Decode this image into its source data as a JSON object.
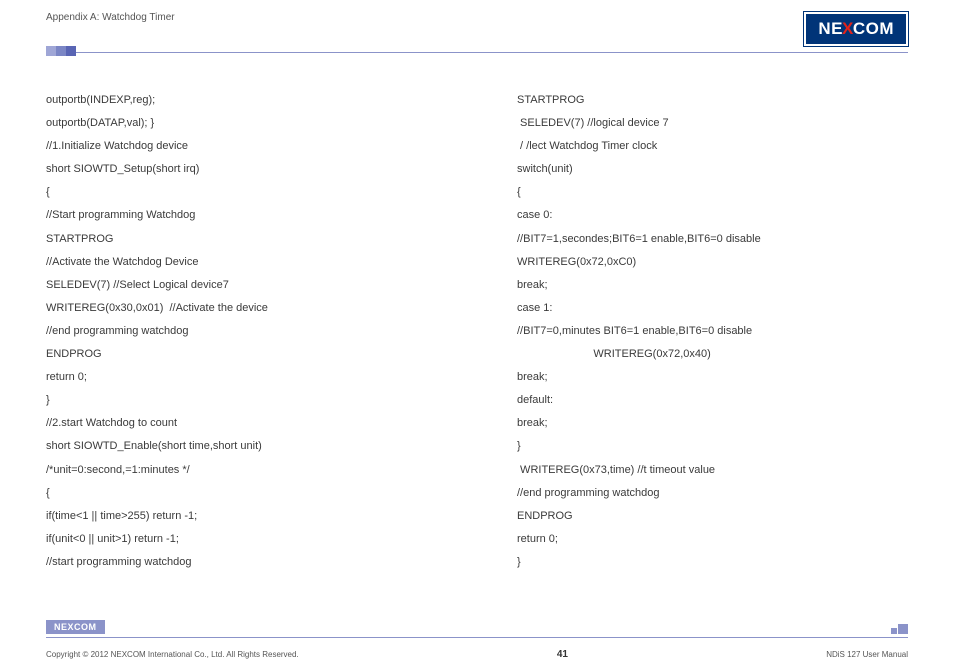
{
  "header": {
    "appendix": "Appendix A: Watchdog Timer",
    "logo_text_left": "NE",
    "logo_text_x": "X",
    "logo_text_right": "COM"
  },
  "colors": {
    "brand_blue": "#003478",
    "brand_red": "#e2231a",
    "rule_purple": "#8b93c9",
    "sq_light": "#9fa6d6",
    "sq_mid": "#7b86c5",
    "sq_dark": "#5965b4"
  },
  "code_left": [
    "outportb(INDEXP,reg);",
    "outportb(DATAP,val); }",
    "//1.Initialize Watchdog device",
    "short SIOWTD_Setup(short irq)",
    "{",
    "//Start programming Watchdog",
    "STARTPROG",
    "//Activate the Watchdog Device",
    "SELEDEV(7) //Select Logical device7",
    "WRITEREG(0x30,0x01)  //Activate the device",
    "//end programming watchdog",
    "ENDPROG",
    "return 0;",
    "}",
    "//2.start Watchdog to count",
    "short SIOWTD_Enable(short time,short unit)",
    "/*unit=0:second,=1:minutes */",
    "{",
    "if(time<1 || time>255) return -1;",
    "if(unit<0 || unit>1) return -1;",
    "//start programming watchdog"
  ],
  "code_right": [
    "STARTPROG",
    " SELEDEV(7) //logical device 7",
    " / /lect Watchdog Timer clock",
    "switch(unit)",
    "{",
    "case 0:",
    "//BIT7=1,secondes;BIT6=1 enable,BIT6=0 disable",
    "WRITEREG(0x72,0xC0)",
    "break;",
    "case 1:",
    "//BIT7=0,minutes BIT6=1 enable,BIT6=0 disable",
    "                         WRITEREG(0x72,0x40)",
    "break;",
    "default:",
    "break;",
    "}",
    " WRITEREG(0x73,time) //t timeout value",
    "//end programming watchdog",
    "ENDPROG",
    "return 0;",
    "}"
  ],
  "footer": {
    "copyright": "Copyright © 2012 NEXCOM International Co., Ltd. All Rights Reserved.",
    "page": "41",
    "manual": "NDiS 127 User Manual",
    "logo_text_left": "NE",
    "logo_text_x": "X",
    "logo_text_right": "COM"
  }
}
